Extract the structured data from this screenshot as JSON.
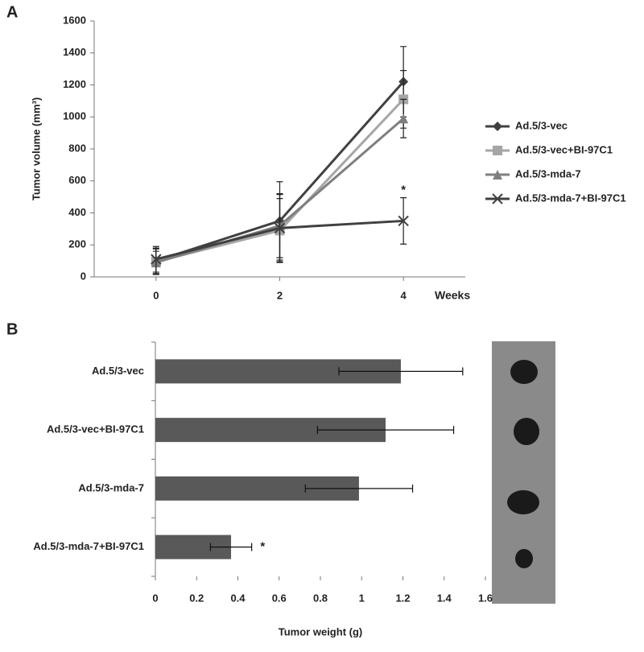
{
  "chart_data": [
    {
      "type": "line",
      "panel_label": "A",
      "y_label": "Tumor volume (mm³)",
      "x_label": "Weeks",
      "x": [
        0,
        2,
        4
      ],
      "xlim": [
        -1,
        5
      ],
      "xticks": [
        0,
        2,
        4
      ],
      "ylim": [
        0,
        1600
      ],
      "yticks": [
        0,
        200,
        400,
        600,
        800,
        1000,
        1200,
        1400,
        1600
      ],
      "series": [
        {
          "name": "Ad.5/3-vec",
          "color": "#404040",
          "marker": "diamond",
          "values": [
            100,
            350,
            1220
          ],
          "errors": [
            80,
            245,
            220
          ]
        },
        {
          "name": "Ad.5/3-vec+BI-97C1",
          "color": "#a6a6a6",
          "marker": "square",
          "values": [
            95,
            290,
            1110
          ],
          "errors": [
            80,
            200,
            180
          ]
        },
        {
          "name": "Ad.5/3-mda-7",
          "color": "#7f7f7f",
          "marker": "triangle",
          "values": [
            90,
            320,
            990
          ],
          "errors": [
            70,
            200,
            120
          ]
        },
        {
          "name": "Ad.5/3-mda-7+BI-97C1",
          "color": "#404040",
          "marker": "x",
          "values": [
            110,
            305,
            350
          ],
          "errors": [
            80,
            210,
            145
          ]
        }
      ],
      "annotations": [
        {
          "text": "*",
          "x": 4,
          "y": 540
        }
      ]
    },
    {
      "type": "hbar",
      "panel_label": "B",
      "x_label": "Tumor weight (g)",
      "categories": [
        "Ad.5/3-vec",
        "Ad.5/3-vec+BI-97C1",
        "Ad.5/3-mda-7",
        "Ad.5/3-mda-7+BI-97C1"
      ],
      "values": [
        1.19,
        1.116,
        0.987,
        0.367
      ],
      "errors": [
        0.3,
        0.33,
        0.26,
        0.1
      ],
      "color": "#595959",
      "xlim": [
        0,
        1.6
      ],
      "xticks": [
        0,
        0.2,
        0.4,
        0.6,
        0.8,
        1,
        1.2,
        1.4,
        1.6
      ],
      "annotations": [
        {
          "text": "*",
          "x": 0.52,
          "index": 3
        }
      ]
    }
  ]
}
